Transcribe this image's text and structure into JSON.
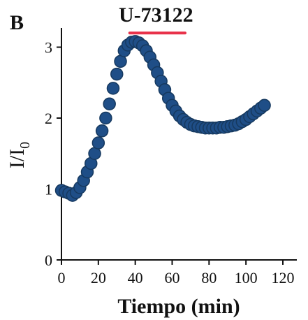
{
  "panel_label": "B",
  "chart_data": {
    "type": "scatter",
    "title": "",
    "xlabel": "Tiempo (min)",
    "ylabel_main": "I/I",
    "ylabel_sub": "0",
    "xlim": [
      0,
      120
    ],
    "ylim": [
      0,
      3.35
    ],
    "xticks": [
      0,
      20,
      40,
      60,
      80,
      100,
      120
    ],
    "yticks": [
      0,
      1,
      2,
      3
    ],
    "grid": false,
    "marker_color": "#1f4e87",
    "annotation": {
      "label": "U-73122",
      "x_start": 37,
      "x_end": 67,
      "y": 3.2,
      "color": "#e8324a"
    },
    "series": [
      {
        "x": [
          0,
          2,
          4,
          6,
          8,
          10,
          12,
          14,
          16,
          18,
          20,
          22,
          24,
          26,
          28,
          30,
          32,
          34,
          36,
          38,
          40,
          42,
          44,
          46,
          48,
          50,
          52,
          54,
          56,
          58,
          60,
          62,
          64,
          66,
          68,
          70,
          72,
          74,
          76,
          78,
          80,
          82,
          84,
          86,
          88,
          90,
          92,
          94,
          96,
          98,
          100,
          102,
          104,
          106,
          108,
          110
        ],
        "y": [
          0.98,
          0.96,
          0.94,
          0.91,
          0.95,
          1.02,
          1.12,
          1.24,
          1.36,
          1.5,
          1.65,
          1.82,
          2.0,
          2.2,
          2.42,
          2.62,
          2.8,
          2.95,
          3.03,
          3.07,
          3.08,
          3.06,
          3.02,
          2.95,
          2.86,
          2.75,
          2.64,
          2.52,
          2.4,
          2.28,
          2.18,
          2.1,
          2.03,
          1.98,
          1.94,
          1.91,
          1.89,
          1.88,
          1.87,
          1.86,
          1.86,
          1.86,
          1.86,
          1.87,
          1.87,
          1.88,
          1.89,
          1.9,
          1.92,
          1.95,
          1.98,
          2.02,
          2.06,
          2.1,
          2.14,
          2.18
        ]
      }
    ]
  }
}
